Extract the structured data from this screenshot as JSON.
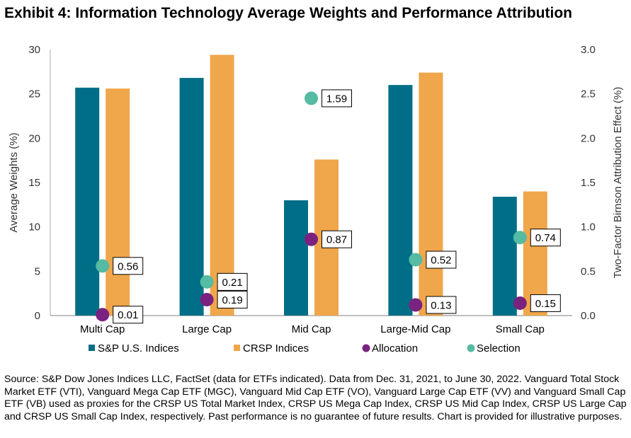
{
  "chart_data": {
    "type": "bar",
    "title": "Exhibit 4: Information Technology Average Weights and Performance Attribution",
    "categories": [
      "Multi Cap",
      "Large Cap",
      "Mid Cap",
      "Large-Mid Cap",
      "Small Cap"
    ],
    "ylabel": "Average Weights (%)",
    "y2label": "Two-Factor Birnson Attribution Effect (%)",
    "ylim": [
      0,
      30
    ],
    "y2lim": [
      0,
      3.0
    ],
    "yticks": [
      "0",
      "5",
      "10",
      "15",
      "20",
      "25",
      "30"
    ],
    "y2ticks": [
      "0.0",
      "0.5",
      "1.0",
      "1.5",
      "2.0",
      "2.5",
      "3.0"
    ],
    "grid": false,
    "legend_position": "bottom",
    "series": [
      {
        "name": "S&P U.S. Indices",
        "kind": "bar",
        "axis": "left",
        "color": "#006E87",
        "values": [
          25.7,
          26.8,
          13.0,
          26.0,
          13.4
        ]
      },
      {
        "name": "CRSP Indices",
        "kind": "bar",
        "axis": "left",
        "color": "#F0A64A",
        "values": [
          25.6,
          29.4,
          17.6,
          27.4,
          14.0
        ]
      },
      {
        "name": "Allocation",
        "kind": "scatter",
        "axis": "right",
        "color": "#7A2280",
        "values": [
          0.01,
          0.19,
          0.87,
          0.13,
          0.15
        ],
        "labels": [
          "0.01",
          "0.19",
          "0.87",
          "0.13",
          "0.15"
        ],
        "plotted": [
          0.01,
          0.18,
          0.86,
          0.12,
          0.14
        ]
      },
      {
        "name": "Selection",
        "kind": "scatter",
        "axis": "right",
        "color": "#55BBA3",
        "values": [
          0.56,
          0.21,
          1.59,
          0.52,
          0.74
        ],
        "labels": [
          "0.56",
          "0.21",
          "1.59",
          "0.52",
          "0.74"
        ],
        "plotted": [
          0.56,
          0.38,
          2.45,
          0.63,
          0.88
        ]
      }
    ]
  },
  "title": "Exhibit 4: Information Technology Average Weights and Performance Attribution",
  "source": "Source: S&P Dow Jones Indices LLC, FactSet (data for ETFs indicated). Data from Dec. 31, 2021, to June 30, 2022. Vanguard Total Stock Market ETF (VTI), Vanguard Mega Cap ETF (MGC), Vanguard Mid Cap ETF (VO), Vanguard Large Cap ETF (VV) and Vanguard Small Cap ETF (VB) used as proxies for the CRSP US Total Market Index, CRSP US Mega Cap Index, CRSP US Mid Cap Index, CRSP US Large Cap and CRSP US Small Cap Index, respectively. Past performance is no guarantee of future results. Chart is provided for illustrative purposes."
}
